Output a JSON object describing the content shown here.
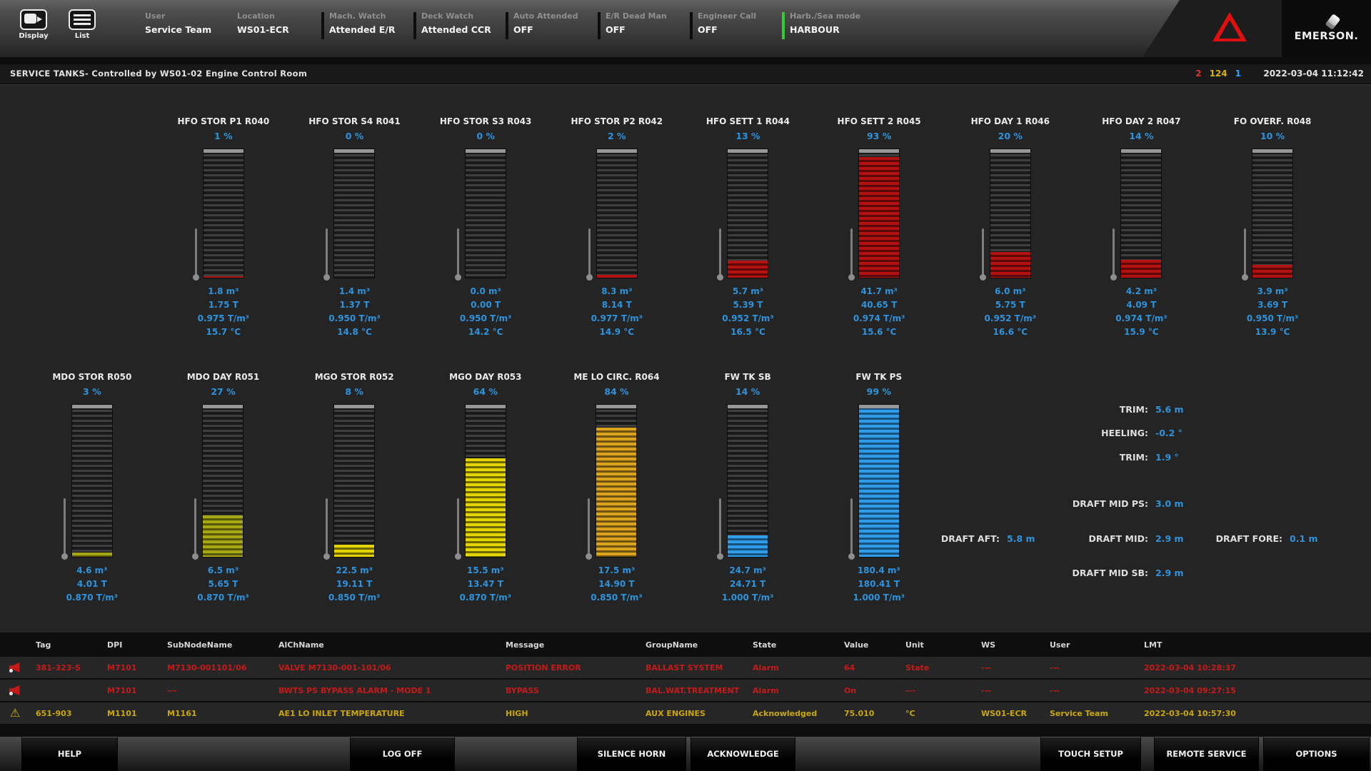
{
  "header": {
    "buttons": [
      {
        "label": "Display"
      },
      {
        "label": "List"
      }
    ],
    "status_fields": [
      {
        "label": "User",
        "value": "Service Team",
        "bar": "none"
      },
      {
        "label": "Location",
        "value": "WS01-ECR",
        "bar": "none"
      },
      {
        "label": "Mach. Watch",
        "value": "Attended E/R",
        "bar": "black"
      },
      {
        "label": "Deck Watch",
        "value": "Attended CCR",
        "bar": "black"
      },
      {
        "label": "Auto Attended",
        "value": "OFF",
        "bar": "black"
      },
      {
        "label": "E/R Dead Man",
        "value": "OFF",
        "bar": "black"
      },
      {
        "label": "Engineer Call",
        "value": "OFF",
        "bar": "black"
      },
      {
        "label": "Harb./Sea mode",
        "value": "HARBOUR",
        "bar": "green"
      }
    ],
    "brand": "EMERSON."
  },
  "title_bar": {
    "title": "SERVICE TANKS- Controlled by WS01-02 Engine Control Room",
    "alarm_counts": {
      "red": "2",
      "yellow": "124",
      "blue": "1"
    },
    "timestamp": "2022-03-04 11:12:42"
  },
  "tanks_row1": [
    {
      "name": "HFO STOR P1 R040",
      "percent": 1,
      "percent_label": "1 %",
      "fill": "red",
      "values": [
        "1.8 m³",
        "1.75 T",
        "0.975 T/m³",
        "15.7 °C"
      ]
    },
    {
      "name": "HFO STOR S4 R041",
      "percent": 0,
      "percent_label": "0 %",
      "fill": "red",
      "values": [
        "1.4 m³",
        "1.37 T",
        "0.950 T/m³",
        "14.8 °C"
      ]
    },
    {
      "name": "HFO STOR S3 R043",
      "percent": 0,
      "percent_label": "0 %",
      "fill": "red",
      "values": [
        "0.0 m³",
        "0.00 T",
        "0.950 T/m³",
        "14.2 °C"
      ]
    },
    {
      "name": "HFO STOR P2 R042",
      "percent": 2,
      "percent_label": "2 %",
      "fill": "red",
      "values": [
        "8.3 m³",
        "8.14 T",
        "0.977 T/m³",
        "14.9 °C"
      ]
    },
    {
      "name": "HFO SETT 1 R044",
      "percent": 13,
      "percent_label": "13 %",
      "fill": "red",
      "values": [
        "5.7 m³",
        "5.39 T",
        "0.952 T/m³",
        "16.5 °C"
      ]
    },
    {
      "name": "HFO SETT 2 R045",
      "percent": 93,
      "percent_label": "93 %",
      "fill": "red",
      "values": [
        "41.7 m³",
        "40.65 T",
        "0.974 T/m³",
        "15.6 °C"
      ]
    },
    {
      "name": "HFO DAY 1 R046",
      "percent": 20,
      "percent_label": "20 %",
      "fill": "red",
      "values": [
        "6.0 m³",
        "5.75 T",
        "0.952 T/m³",
        "16.6 °C"
      ]
    },
    {
      "name": "HFO DAY 2 R047",
      "percent": 14,
      "percent_label": "14 %",
      "fill": "red",
      "values": [
        "4.2 m³",
        "4.09 T",
        "0.974 T/m³",
        "15.9 °C"
      ]
    },
    {
      "name": "FO OVERF. R048",
      "percent": 10,
      "percent_label": "10 %",
      "fill": "red",
      "values": [
        "3.9 m³",
        "3.69 T",
        "0.950 T/m³",
        "13.9 °C"
      ]
    }
  ],
  "tanks_row2": [
    {
      "name": "MDO STOR R050",
      "percent": 3,
      "percent_label": "3 %",
      "fill": "olive",
      "values": [
        "4.6 m³",
        "4.01 T",
        "0.870 T/m³"
      ]
    },
    {
      "name": "MDO DAY R051",
      "percent": 27,
      "percent_label": "27 %",
      "fill": "olive",
      "values": [
        "6.5 m³",
        "5.65 T",
        "0.870 T/m³"
      ]
    },
    {
      "name": "MGO STOR R052",
      "percent": 8,
      "percent_label": "8 %",
      "fill": "yellow",
      "values": [
        "22.5 m³",
        "19.11 T",
        "0.850 T/m³"
      ]
    },
    {
      "name": "MGO DAY R053",
      "percent": 64,
      "percent_label": "64 %",
      "fill": "yellow",
      "values": [
        "15.5 m³",
        "13.47 T",
        "0.870 T/m³"
      ]
    },
    {
      "name": "ME LO CIRC. R064",
      "percent": 84,
      "percent_label": "84 %",
      "fill": "gold",
      "values": [
        "17.5 m³",
        "14.90 T",
        "0.850 T/m³"
      ]
    },
    {
      "name": "FW TK SB",
      "percent": 14,
      "percent_label": "14 %",
      "fill": "blue",
      "values": [
        "24.7 m³",
        "24.71 T",
        "1.000 T/m³"
      ]
    },
    {
      "name": "FW TK PS",
      "percent": 99,
      "percent_label": "99 %",
      "fill": "blue",
      "values": [
        "180.4 m³",
        "180.41 T",
        "1.000 T/m³"
      ]
    }
  ],
  "trim_draft": {
    "trim1": {
      "label": "TRIM:",
      "value": "5.6 m"
    },
    "heeling": {
      "label": "HEELING:",
      "value": "-0.2 °"
    },
    "trim2": {
      "label": "TRIM:",
      "value": "1.9 °"
    },
    "draft_mid_ps": {
      "label": "DRAFT MID PS:",
      "value": "3.0 m"
    },
    "draft_aft": {
      "label": "DRAFT AFT:",
      "value": "5.8 m"
    },
    "draft_mid": {
      "label": "DRAFT MID:",
      "value": "2.9 m"
    },
    "draft_fore": {
      "label": "DRAFT FORE:",
      "value": "0.1 m"
    },
    "draft_mid_sb": {
      "label": "DRAFT MID SB:",
      "value": "2.9 m"
    }
  },
  "alarm_table": {
    "columns": [
      "Tag",
      "DPI",
      "SubNodeName",
      "AlChName",
      "Message",
      "GroupName",
      "State",
      "Value",
      "Unit",
      "WS",
      "User",
      "LMT"
    ],
    "rows": [
      {
        "severity": "alarm",
        "icon": "horn-alarm-icon",
        "cells": [
          "381-323-S",
          "M7101",
          "M7130-001101/06",
          "VALVE M7130-001-101/06",
          "POSITION ERROR",
          "BALLAST SYSTEM",
          "Alarm",
          "64",
          "State",
          "---",
          "---",
          "2022-03-04 10:28:37"
        ]
      },
      {
        "severity": "alarm",
        "icon": "horn-alarm-icon",
        "cells": [
          "",
          "M7101",
          "---",
          "BWTS PS BYPASS ALARM - MODE 1",
          "BYPASS",
          "BAL.WAT.TREATMENT",
          "Alarm",
          "On",
          "---",
          "---",
          "---",
          "2022-03-04 09:27:15"
        ]
      },
      {
        "severity": "acknowledged",
        "icon": "warning-triangle-icon",
        "cells": [
          "651-903",
          "M1101",
          "M1161",
          "AE1 LO INLET TEMPERATURE",
          "HIGH",
          "AUX ENGINES",
          "Acknowledged",
          "75.010",
          "°C",
          "WS01-ECR",
          "Service Team",
          "2022-03-04 10:57:30"
        ]
      }
    ]
  },
  "footer_buttons": [
    "HELP",
    "LOG OFF",
    "SILENCE HORN",
    "ACKNOWLEDGE",
    "TOUCH SETUP",
    "REMOTE SERVICE",
    "OPTIONS"
  ],
  "accent_colors": {
    "value_blue": "#2d93dc",
    "tank_red": "#b31212",
    "tank_olive": "#a6a714",
    "tank_yellow": "#e3d404",
    "tank_gold": "#dca41e",
    "tank_blue": "#2f9de8",
    "alarm_red": "#c41a1a",
    "ack_yellow": "#c9a70a",
    "count_red": "#e03030",
    "count_yellow": "#d8b400",
    "count_blue": "#2da0ff",
    "harbour_green": "#35cb35",
    "alert_triangle_red": "#e01010"
  }
}
